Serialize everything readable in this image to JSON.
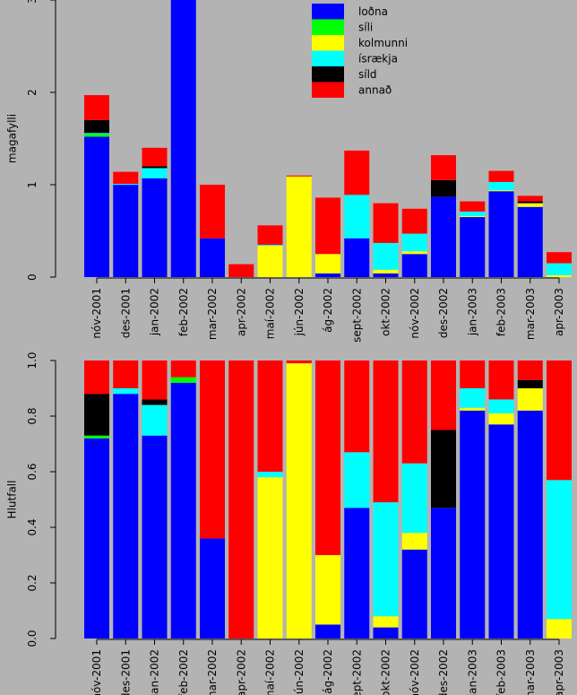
{
  "chart_data": [
    {
      "type": "bar",
      "stacked": true,
      "title": "",
      "xlabel": "",
      "ylabel": "magafylli",
      "ylim": [
        0,
        3.0
      ],
      "yticks": [
        0,
        1,
        2,
        3
      ],
      "categories": [
        "nóv-2001",
        "des-2001",
        "jan-2002",
        "feb-2002",
        "mar-2002",
        "apr-2002",
        "maí-2002",
        "jún-2002",
        "ág-2002",
        "sept-2002",
        "okt-2002",
        "nóv-2002",
        "des-2002",
        "jan-2003",
        "feb-2003",
        "mar-2003",
        "apr-2003"
      ],
      "series": [
        {
          "name": "loðna",
          "color": "#0000ff",
          "values": [
            1.52,
            1.0,
            1.07,
            3.18,
            0.42,
            0,
            0,
            0,
            0.04,
            0.42,
            0.04,
            0.25,
            0.87,
            0.65,
            0.93,
            0.76,
            0
          ]
        },
        {
          "name": "síli",
          "color": "#00ff00",
          "values": [
            0.03,
            0,
            0,
            0.07,
            0,
            0,
            0,
            0,
            0,
            0,
            0,
            0,
            0,
            0,
            0,
            0,
            0
          ]
        },
        {
          "name": "kolmunni",
          "color": "#ffff00",
          "values": [
            0,
            0,
            0,
            0,
            0,
            0,
            0.34,
            1.09,
            0.21,
            0,
            0.04,
            0.03,
            0,
            0.01,
            0.01,
            0.04,
            0.02
          ]
        },
        {
          "name": "ísrækja",
          "color": "#00ffff",
          "values": [
            0.01,
            0.01,
            0.11,
            0,
            0,
            0,
            0.01,
            0,
            0,
            0.47,
            0.29,
            0.19,
            0,
            0.05,
            0.09,
            0,
            0.13
          ]
        },
        {
          "name": "síld",
          "color": "#000000",
          "values": [
            0.14,
            0,
            0.02,
            0,
            0,
            0,
            0,
            0,
            0,
            0,
            0,
            0,
            0.18,
            0,
            0,
            0.02,
            0
          ]
        },
        {
          "name": "annað",
          "color": "#ff0000",
          "values": [
            0.27,
            0.13,
            0.2,
            0.2,
            0.58,
            0.14,
            0.21,
            0.01,
            0.61,
            0.48,
            0.43,
            0.27,
            0.27,
            0.11,
            0.12,
            0.06,
            0.12
          ]
        }
      ],
      "legend": "top-center"
    },
    {
      "type": "bar",
      "stacked": true,
      "title": "",
      "xlabel": "",
      "ylabel": "Hlutfall",
      "ylim": [
        0,
        1.0
      ],
      "yticks": [
        "0.0",
        "0.2",
        "0.4",
        "0.6",
        "0.8",
        "1.0"
      ],
      "categories": [
        "nóv-2001",
        "des-2001",
        "jan-2002",
        "feb-2002",
        "mar-2002",
        "apr-2002",
        "maí-2002",
        "jún-2002",
        "ág-2002",
        "sept-2002",
        "okt-2002",
        "nóv-2002",
        "des-2002",
        "jan-2003",
        "feb-2003",
        "mar-2003",
        "apr-2003"
      ],
      "series": [
        {
          "name": "loðna",
          "color": "#0000ff",
          "values": [
            0.72,
            0.88,
            0.73,
            0.92,
            0.36,
            0,
            0,
            0,
            0.05,
            0.47,
            0.04,
            0.32,
            0.47,
            0.82,
            0.77,
            0.82,
            0
          ]
        },
        {
          "name": "síli",
          "color": "#00ff00",
          "values": [
            0.01,
            0,
            0,
            0.02,
            0,
            0,
            0,
            0,
            0,
            0,
            0,
            0,
            0,
            0,
            0,
            0,
            0
          ]
        },
        {
          "name": "kolmunni",
          "color": "#ffff00",
          "values": [
            0,
            0,
            0,
            0,
            0,
            0,
            0.58,
            0.99,
            0.25,
            0,
            0.04,
            0.06,
            0,
            0.01,
            0.04,
            0.08,
            0.07
          ]
        },
        {
          "name": "ísrækja",
          "color": "#00ffff",
          "values": [
            0,
            0.02,
            0.11,
            0,
            0,
            0,
            0.02,
            0,
            0,
            0.2,
            0.41,
            0.25,
            0,
            0.07,
            0.05,
            0,
            0.5
          ]
        },
        {
          "name": "síld",
          "color": "#000000",
          "values": [
            0.15,
            0,
            0.02,
            0,
            0,
            0,
            0,
            0,
            0,
            0,
            0,
            0,
            0.28,
            0,
            0,
            0.03,
            0
          ]
        },
        {
          "name": "annað",
          "color": "#ff0000",
          "values": [
            0.12,
            0.1,
            0.14,
            0.06,
            0.64,
            1.0,
            0.4,
            0.01,
            0.7,
            0.33,
            0.51,
            0.37,
            0.25,
            0.1,
            0.14,
            0.07,
            0.43
          ]
        }
      ]
    }
  ]
}
